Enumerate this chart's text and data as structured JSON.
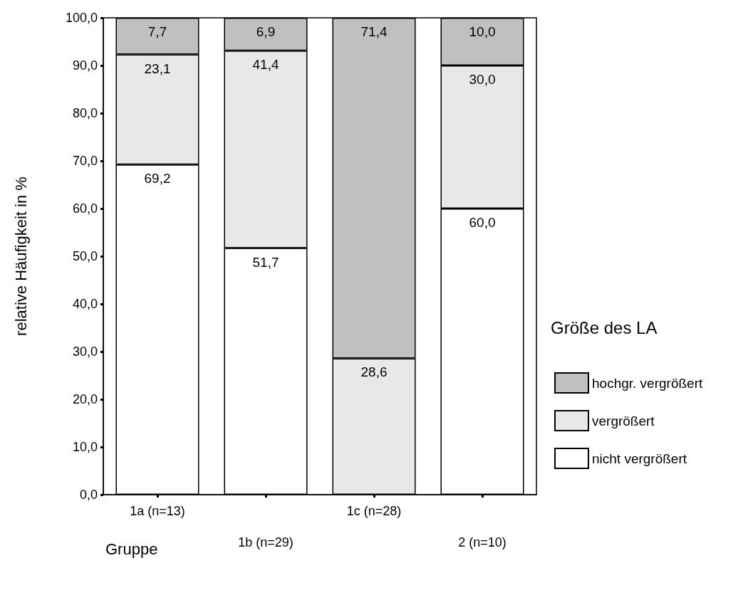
{
  "chart_data": {
    "type": "bar",
    "stacked": true,
    "xlabel": "Gruppe",
    "ylabel": "relative Häufigkeit in %",
    "legend_title": "Größe des LA",
    "legend": "right",
    "categories": [
      "1a (n=13)",
      "1b (n=29)",
      "1c (n=28)",
      "2 (n=10)"
    ],
    "ylim": [
      0,
      100
    ],
    "yticks": [
      {
        "value": 0,
        "label": "0,0"
      },
      {
        "value": 10,
        "label": "10,0"
      },
      {
        "value": 20,
        "label": "20,0"
      },
      {
        "value": 30,
        "label": "30,0"
      },
      {
        "value": 40,
        "label": "40,0"
      },
      {
        "value": 50,
        "label": "50,0"
      },
      {
        "value": 60,
        "label": "60,0"
      },
      {
        "value": 70,
        "label": "70,0"
      },
      {
        "value": 80,
        "label": "80,0"
      },
      {
        "value": 90,
        "label": "90,0"
      },
      {
        "value": 100,
        "label": "100,0"
      }
    ],
    "series": [
      {
        "name": "nicht vergrößert",
        "color": "#ffffff",
        "values": [
          69.2,
          51.7,
          null,
          60.0
        ],
        "value_labels": [
          "69,2",
          "51,7",
          null,
          "60,0"
        ]
      },
      {
        "name": "vergrößert",
        "color": "#e8e8e8",
        "values": [
          23.1,
          41.4,
          28.6,
          30.0
        ],
        "value_labels": [
          "23,1",
          "41,4",
          "28,6",
          "30,0"
        ]
      },
      {
        "name": "hochgr. vergrößert",
        "color": "#c0c0c0",
        "values": [
          7.7,
          6.9,
          71.4,
          10.0
        ],
        "value_labels": [
          "7,7",
          "6,9",
          "71,4",
          "10,0"
        ]
      }
    ]
  }
}
